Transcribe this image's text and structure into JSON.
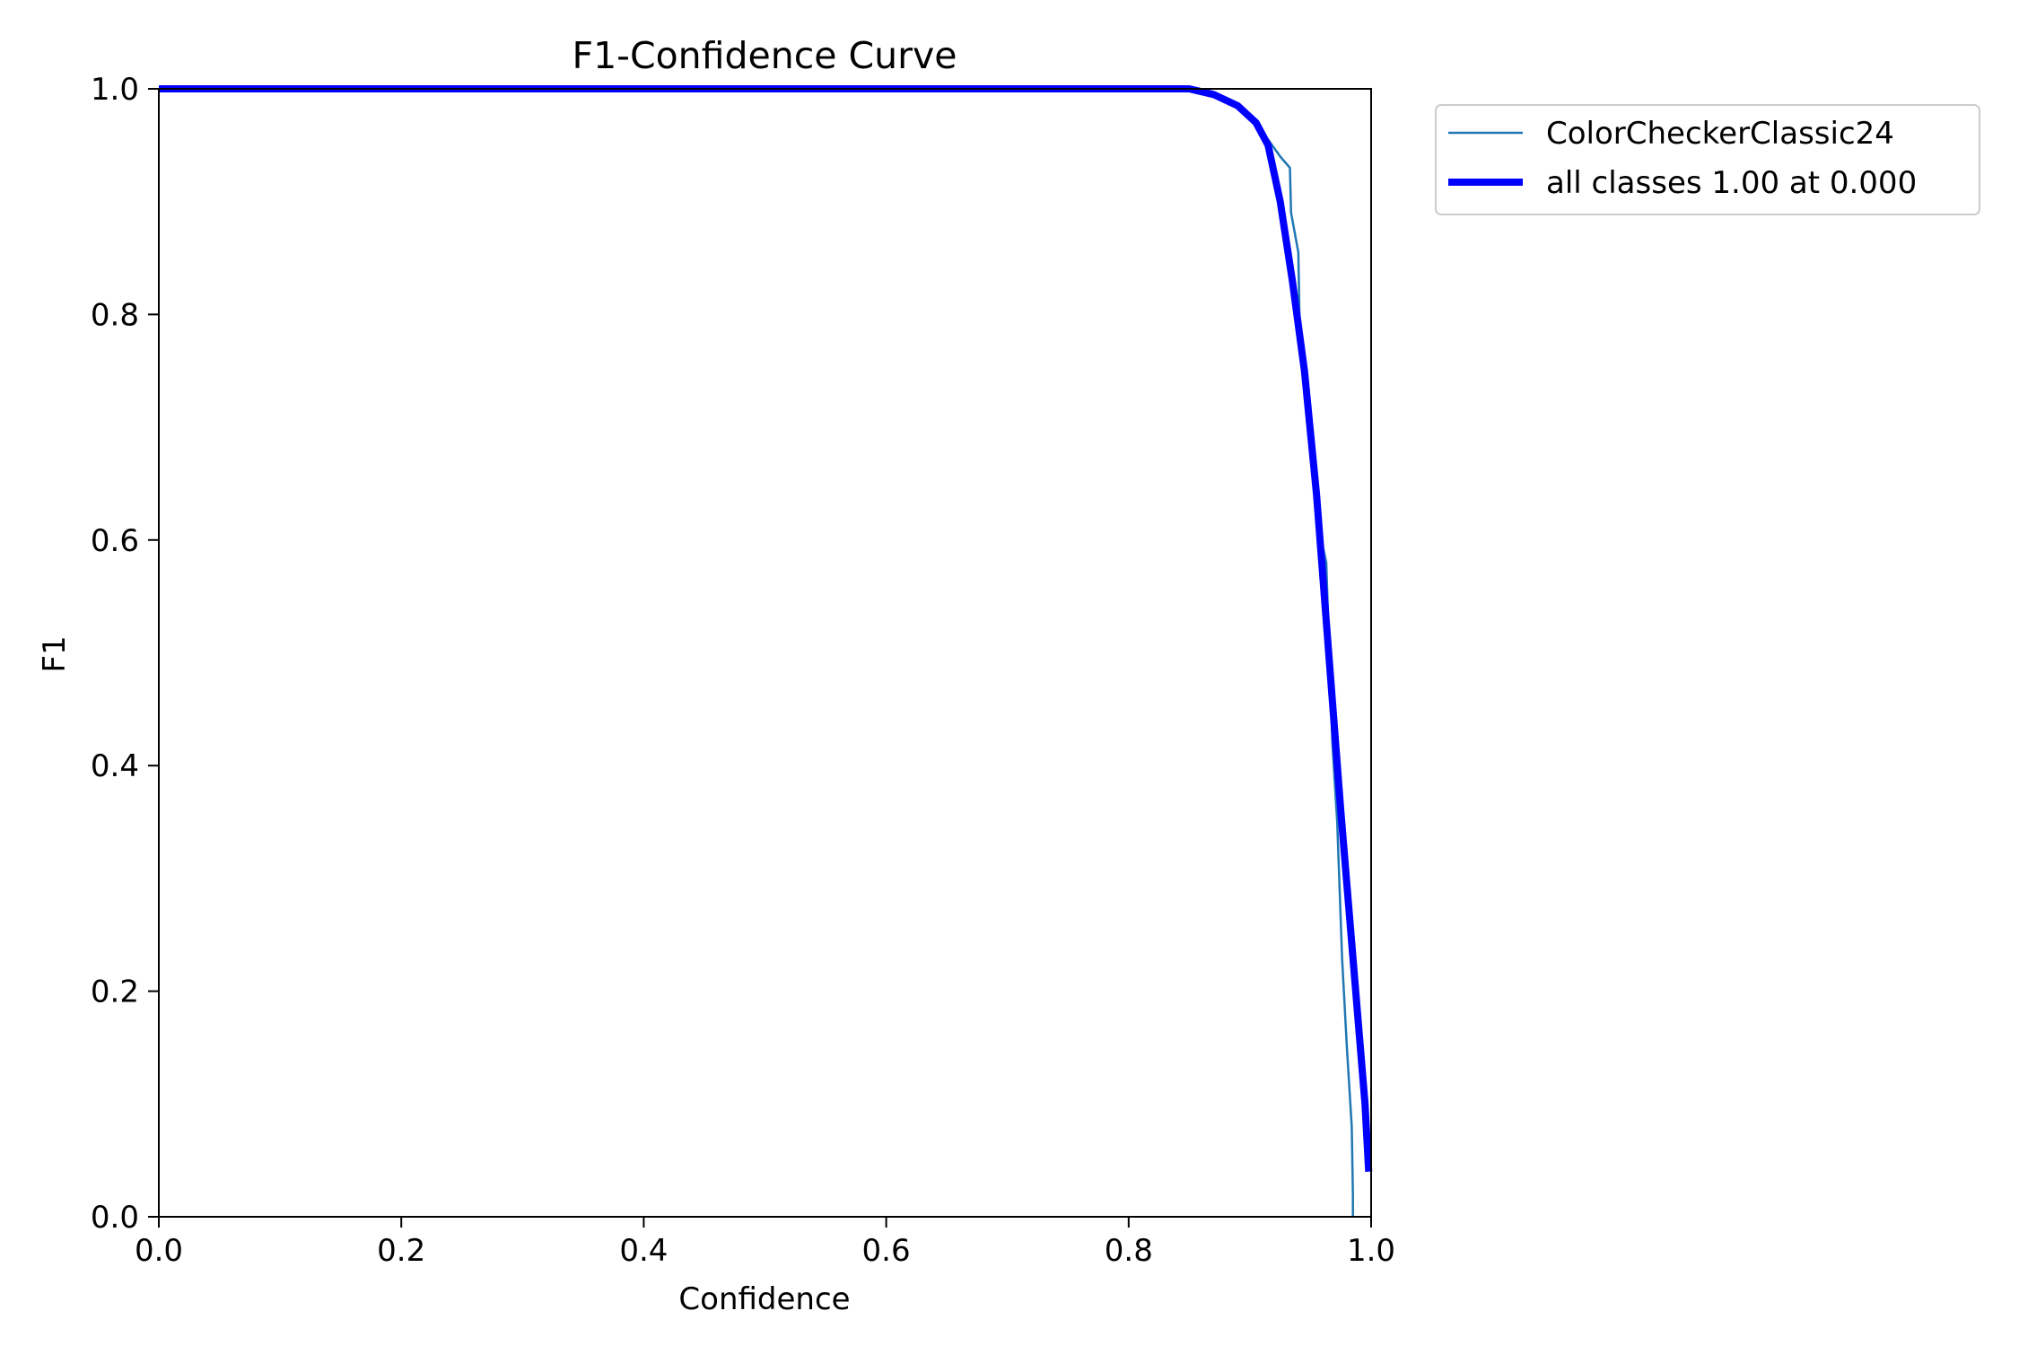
{
  "chart_data": {
    "type": "line",
    "title": "F1-Confidence Curve",
    "xlabel": "Confidence",
    "ylabel": "F1",
    "xlim": [
      0,
      1
    ],
    "ylim": [
      0,
      1
    ],
    "xticks": [
      "0.0",
      "0.2",
      "0.4",
      "0.6",
      "0.8",
      "1.0"
    ],
    "yticks": [
      "0.0",
      "0.2",
      "0.4",
      "0.6",
      "0.8",
      "1.0"
    ],
    "grid": false,
    "legend_position": "outside-top-right",
    "series": [
      {
        "name": "ColorCheckerClassic24",
        "color": "#1f77b4",
        "x": [
          0.0,
          0.85,
          0.87,
          0.89,
          0.905,
          0.915,
          0.925,
          0.933,
          0.934,
          0.94,
          0.941,
          0.945,
          0.955,
          0.963,
          0.968,
          0.972,
          0.976,
          0.98,
          0.984,
          0.985,
          0.985
        ],
        "y": [
          1.0,
          1.0,
          0.995,
          0.985,
          0.97,
          0.955,
          0.94,
          0.93,
          0.89,
          0.855,
          0.79,
          0.73,
          0.62,
          0.58,
          0.42,
          0.35,
          0.23,
          0.15,
          0.08,
          0.02,
          0.0
        ]
      },
      {
        "name": "all classes 1.00 at 0.000",
        "color": "#0000ff",
        "x": [
          0.0,
          0.85,
          0.87,
          0.89,
          0.905,
          0.915,
          0.925,
          0.935,
          0.945,
          0.955,
          0.965,
          0.975,
          0.985,
          0.995,
          0.998
        ],
        "y": [
          1.0,
          1.0,
          0.995,
          0.985,
          0.97,
          0.95,
          0.9,
          0.83,
          0.75,
          0.64,
          0.5,
          0.36,
          0.23,
          0.1,
          0.04
        ]
      }
    ]
  }
}
